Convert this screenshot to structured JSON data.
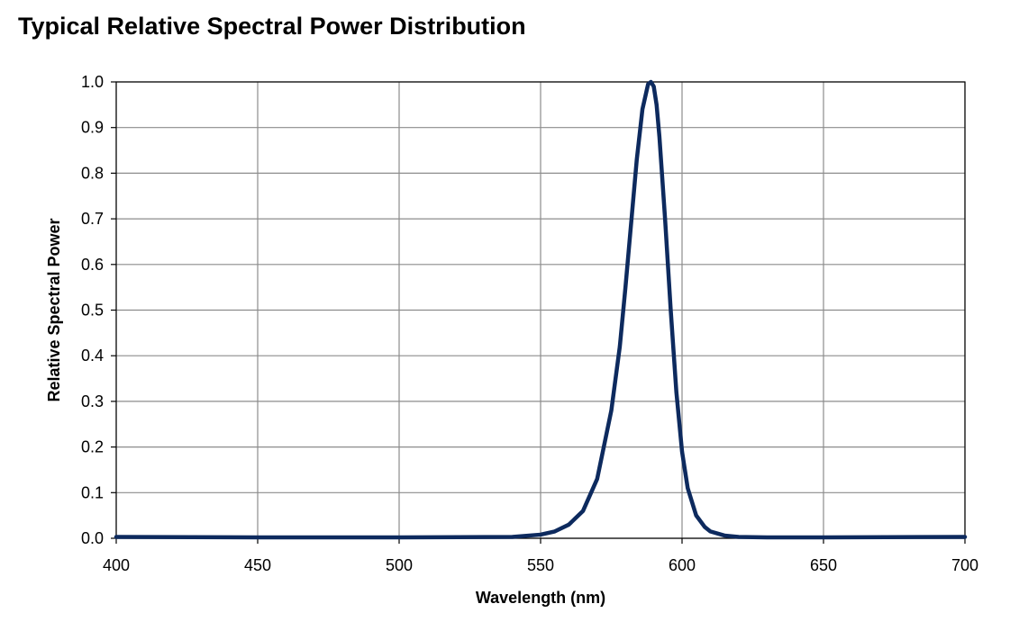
{
  "chart_data": {
    "type": "line",
    "title": "Typical Relative Spectral Power Distribution",
    "xlabel": "Wavelength (nm)",
    "ylabel": "Relative Spectral Power",
    "xlim": [
      400,
      700
    ],
    "ylim": [
      0.0,
      1.0
    ],
    "x_ticks": [
      "400",
      "450",
      "500",
      "550",
      "600",
      "650",
      "700"
    ],
    "y_ticks": [
      "0.0",
      "0.1",
      "0.2",
      "0.3",
      "0.4",
      "0.5",
      "0.6",
      "0.7",
      "0.8",
      "0.9",
      "1.0"
    ],
    "grid": true,
    "line_color": "#0d2a5e",
    "series": [
      {
        "x": [
          400,
          450,
          500,
          540,
          550,
          555,
          560,
          565,
          570,
          575,
          578,
          580,
          582,
          584,
          586,
          588,
          589,
          590,
          591,
          592,
          594,
          596,
          598,
          600,
          602,
          605,
          608,
          610,
          615,
          620,
          630,
          650,
          700
        ],
        "values": [
          0.003,
          0.002,
          0.002,
          0.003,
          0.008,
          0.015,
          0.03,
          0.06,
          0.13,
          0.28,
          0.42,
          0.55,
          0.69,
          0.83,
          0.94,
          0.995,
          1.0,
          0.99,
          0.95,
          0.88,
          0.7,
          0.5,
          0.32,
          0.19,
          0.11,
          0.05,
          0.025,
          0.015,
          0.006,
          0.003,
          0.002,
          0.002,
          0.003
        ]
      }
    ]
  }
}
